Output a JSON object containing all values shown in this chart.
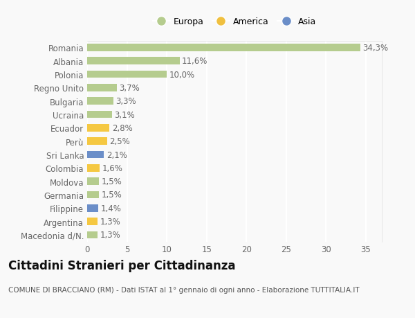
{
  "categories": [
    "Macedonia d/N.",
    "Argentina",
    "Filippine",
    "Germania",
    "Moldova",
    "Colombia",
    "Sri Lanka",
    "Perù",
    "Ecuador",
    "Ucraina",
    "Bulgaria",
    "Regno Unito",
    "Polonia",
    "Albania",
    "Romania"
  ],
  "values": [
    1.3,
    1.3,
    1.4,
    1.5,
    1.5,
    1.6,
    2.1,
    2.5,
    2.8,
    3.1,
    3.3,
    3.7,
    10.0,
    11.6,
    34.3
  ],
  "bar_colors": [
    "#b5cc8e",
    "#f5c842",
    "#6b8ec8",
    "#b5cc8e",
    "#b5cc8e",
    "#f5c842",
    "#6b8ec8",
    "#f5c842",
    "#f5c842",
    "#b5cc8e",
    "#b5cc8e",
    "#b5cc8e",
    "#b5cc8e",
    "#b5cc8e",
    "#b5cc8e"
  ],
  "labels": [
    "1,3%",
    "1,3%",
    "1,4%",
    "1,5%",
    "1,5%",
    "1,6%",
    "2,1%",
    "2,5%",
    "2,8%",
    "3,1%",
    "3,3%",
    "3,7%",
    "10,0%",
    "11,6%",
    "34,3%"
  ],
  "continent": [
    "Europa",
    "America",
    "Asia"
  ],
  "legend_colors": [
    "#b5cc8e",
    "#f0c040",
    "#6b8ec8"
  ],
  "title": "Cittadini Stranieri per Cittadinanza",
  "subtitle": "COMUNE DI BRACCIANO (RM) - Dati ISTAT al 1° gennaio di ogni anno - Elaborazione TUTTITALIA.IT",
  "xlim": [
    0,
    37
  ],
  "xticks": [
    0,
    5,
    10,
    15,
    20,
    25,
    30,
    35
  ],
  "background_color": "#f9f9f9",
  "grid_color": "#ffffff",
  "bar_height": 0.55,
  "label_fontsize": 8.5,
  "tick_fontsize": 8.5,
  "title_fontsize": 12,
  "subtitle_fontsize": 7.5
}
